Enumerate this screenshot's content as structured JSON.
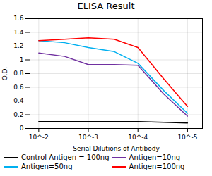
{
  "chart_data": {
    "type": "line",
    "title": "ELISA Result",
    "x_label": "Serial Dilutions of Antibody",
    "y_label": "O.D.",
    "x": [
      0.01,
      0.003,
      0.001,
      0.0003,
      0.0001,
      3e-05,
      1e-05
    ],
    "series": [
      {
        "name": "Control Antigen = 100ng",
        "color": "#000000",
        "values": [
          0.1,
          0.1,
          0.1,
          0.1,
          0.1,
          0.09,
          0.08
        ]
      },
      {
        "name": "Antigen=10ng",
        "color": "#7030a0",
        "values": [
          1.1,
          1.05,
          0.93,
          0.93,
          0.92,
          0.5,
          0.18
        ]
      },
      {
        "name": "Antigen=50ng",
        "color": "#00b0f0",
        "values": [
          1.28,
          1.25,
          1.18,
          1.12,
          0.95,
          0.55,
          0.22
        ]
      },
      {
        "name": "Antigen=100ng",
        "color": "#ff0000",
        "values": [
          1.28,
          1.3,
          1.32,
          1.3,
          1.18,
          0.72,
          0.32
        ]
      }
    ],
    "log": "x",
    "xlim": [
      0.015,
      5e-06
    ],
    "xticks": [
      {
        "value": 0.01,
        "label": "10^-2"
      },
      {
        "value": 0.001,
        "label": "10^-3"
      },
      {
        "value": 0.0001,
        "label": "10^-4"
      },
      {
        "value": 1e-05,
        "label": "10^-5"
      }
    ],
    "ylim": [
      0,
      1.6
    ],
    "yticks": [
      0,
      0.2,
      0.4,
      0.6,
      0.8,
      1,
      1.2,
      1.4,
      1.6
    ],
    "grid": true,
    "legend": "bottom"
  }
}
